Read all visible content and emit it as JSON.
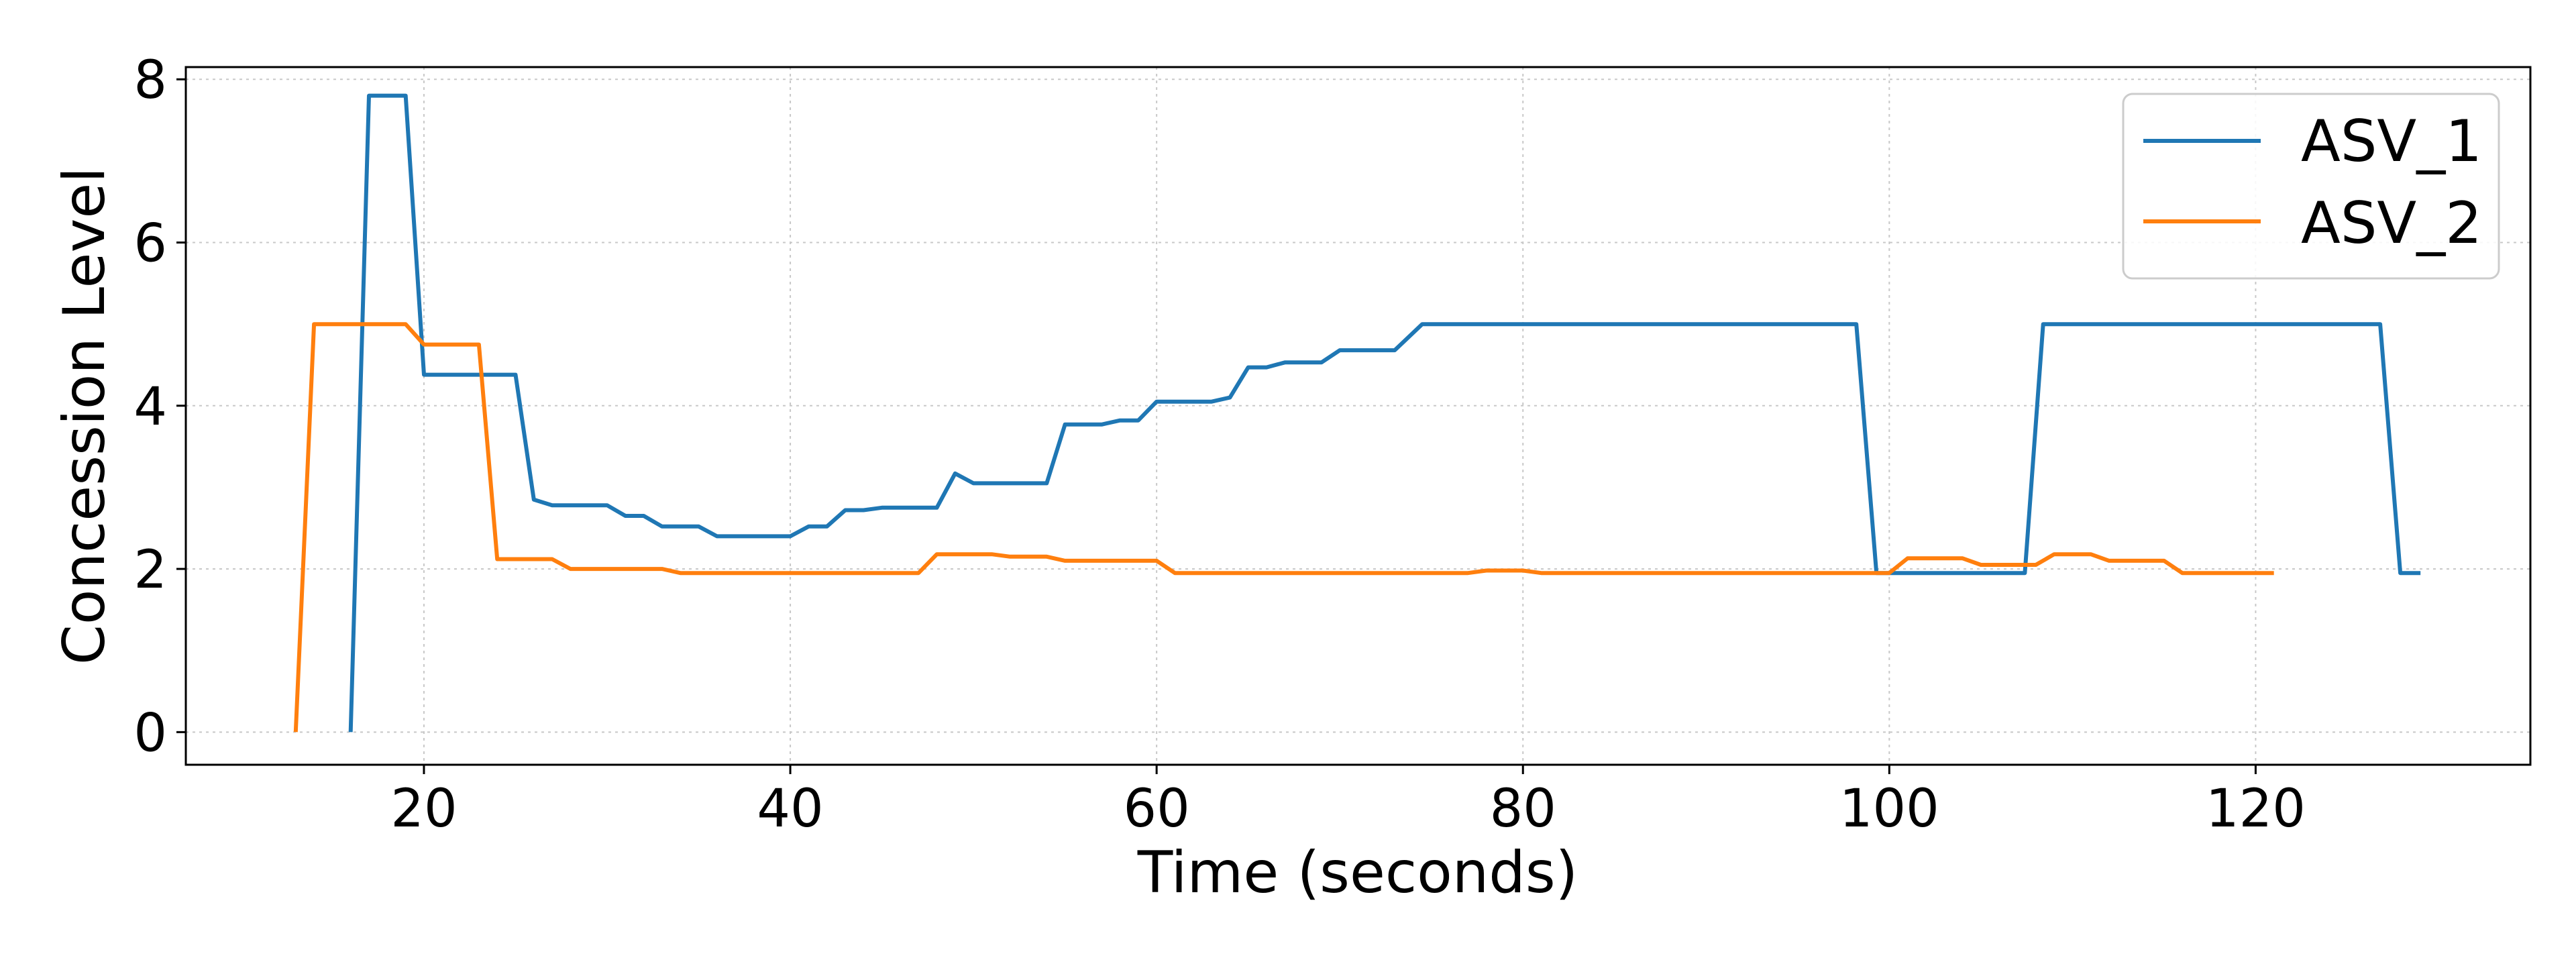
{
  "chart_data": {
    "type": "line",
    "title": "",
    "xlabel": "Time (seconds)",
    "ylabel": "Concession Level",
    "xlim": [
      7,
      135
    ],
    "ylim": [
      -0.4,
      8.15
    ],
    "xticks": [
      20,
      40,
      60,
      80,
      100,
      120
    ],
    "yticks": [
      0,
      2,
      4,
      6,
      8
    ],
    "grid": true,
    "legend": "top-right",
    "series": [
      {
        "name": "ASV_1",
        "color": "#1f77b4",
        "x": [
          16,
          17,
          19,
          20,
          25,
          26,
          27,
          30,
          31,
          32,
          33,
          35,
          36,
          40,
          41,
          42,
          43,
          44,
          45,
          48,
          49,
          50,
          51,
          54,
          55,
          57,
          58,
          59,
          60,
          63,
          64,
          65,
          66,
          67,
          69,
          70,
          73,
          74.5,
          98.2,
          99.3,
          107.4,
          108.4,
          126.8,
          127.9,
          129
        ],
        "y": [
          0,
          7.8,
          7.8,
          4.38,
          4.38,
          2.85,
          2.78,
          2.78,
          2.65,
          2.65,
          2.52,
          2.52,
          2.4,
          2.4,
          2.52,
          2.52,
          2.72,
          2.72,
          2.75,
          2.75,
          3.17,
          3.05,
          3.05,
          3.05,
          3.77,
          3.77,
          3.82,
          3.82,
          4.05,
          4.05,
          4.1,
          4.47,
          4.47,
          4.53,
          4.53,
          4.68,
          4.68,
          5.0,
          5.0,
          1.95,
          1.95,
          5.0,
          5.0,
          1.95,
          1.95
        ]
      },
      {
        "name": "ASV_2",
        "color": "#ff7f0e",
        "x": [
          13,
          14,
          19,
          20,
          23,
          24,
          27,
          28,
          33,
          34,
          47,
          48,
          51,
          52,
          54,
          55,
          60,
          61,
          77,
          78,
          80,
          81,
          100,
          101,
          103,
          104,
          105,
          106,
          108,
          109,
          111,
          112,
          115,
          116,
          121
        ],
        "y": [
          0,
          5.0,
          5.0,
          4.75,
          4.75,
          2.12,
          2.12,
          2.0,
          2.0,
          1.95,
          1.95,
          2.18,
          2.18,
          2.15,
          2.15,
          2.1,
          2.1,
          1.95,
          1.95,
          1.98,
          1.98,
          1.95,
          1.95,
          2.13,
          2.13,
          2.13,
          2.05,
          2.05,
          2.05,
          2.18,
          2.18,
          2.1,
          2.1,
          1.95,
          1.95
        ]
      }
    ]
  }
}
